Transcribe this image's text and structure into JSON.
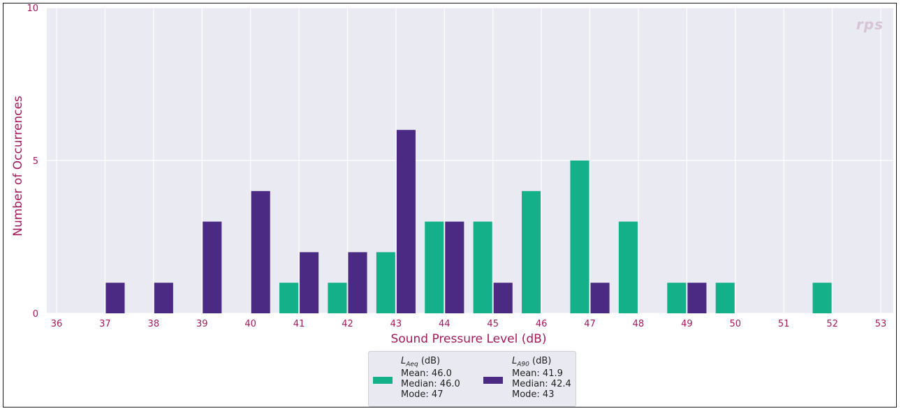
{
  "chart_data": {
    "type": "bar",
    "xlabel": "Sound Pressure Level (dB)",
    "ylabel": "Number of Occurrences",
    "xlim": [
      36,
      53
    ],
    "ylim": [
      0,
      10
    ],
    "x_ticks": [
      "36",
      "37",
      "38",
      "39",
      "40",
      "41",
      "42",
      "43",
      "44",
      "45",
      "46",
      "47",
      "48",
      "49",
      "50",
      "51",
      "52",
      "53"
    ],
    "y_ticks": [
      "0",
      "5",
      "10"
    ],
    "grid": true,
    "legend_position": "bottom",
    "series": [
      {
        "name": "L_Aeq (dB)",
        "name_main": "L",
        "name_sub": "Aeq",
        "name_unit": "(dB)",
        "color": "#13b08a",
        "stats": [
          "Mean: 46.0",
          "Median: 46.0",
          "Mode: 47"
        ],
        "x": [
          41,
          42,
          43,
          44,
          45,
          46,
          47,
          48,
          49,
          50,
          52
        ],
        "values": [
          1,
          1,
          2,
          3,
          3,
          4,
          5,
          3,
          1,
          1,
          1
        ]
      },
      {
        "name": "L_A90 (dB)",
        "name_main": "L",
        "name_sub": "A90",
        "name_unit": "(dB)",
        "color": "#4b2a84",
        "stats": [
          "Mean: 41.9",
          "Median: 42.4",
          "Mode: 43"
        ],
        "x": [
          37,
          38,
          39,
          40,
          41,
          42,
          43,
          44,
          45,
          47,
          49
        ],
        "values": [
          1,
          1,
          3,
          4,
          2,
          2,
          6,
          3,
          1,
          1,
          1
        ]
      }
    ],
    "axis_color": "#a3195b",
    "grid_color": "#ffffff",
    "plot_bg": "#eaeaf2"
  },
  "logo": {
    "text": "rps"
  }
}
